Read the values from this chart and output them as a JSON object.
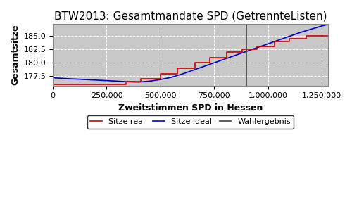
{
  "title": "BTW2013: Gesamtmandate SPD (GetrennteListen)",
  "xlabel": "Zweitstimmen SPD in Hessen",
  "ylabel": "Gesamtsitze",
  "plot_bg_color": "#c8c8c8",
  "fig_bg_color": "#ffffff",
  "wahlergebnis_x": 900000,
  "xlim": [
    0,
    1280000
  ],
  "ylim": [
    175.8,
    187.2
  ],
  "yticks": [
    177.5,
    180.0,
    182.5,
    185.0
  ],
  "xticks": [
    0,
    250000,
    500000,
    750000,
    1000000,
    1250000
  ],
  "ideal_x": [
    0,
    10000,
    50000,
    100000,
    150000,
    200000,
    250000,
    300000,
    320000,
    340000,
    360000,
    380000,
    400000,
    450000,
    500000,
    550000,
    600000,
    650000,
    700000,
    750000,
    800000,
    850000,
    900000,
    950000,
    1000000,
    1050000,
    1100000,
    1150000,
    1200000,
    1250000,
    1280000
  ],
  "ideal_y": [
    177.3,
    177.2,
    177.1,
    177.0,
    176.9,
    176.8,
    176.7,
    176.6,
    176.55,
    176.5,
    176.48,
    176.45,
    176.43,
    176.6,
    176.9,
    177.3,
    177.9,
    178.6,
    179.3,
    180.0,
    180.7,
    181.4,
    182.1,
    182.8,
    183.5,
    184.2,
    184.9,
    185.6,
    186.2,
    186.8,
    187.1
  ],
  "real_x": [
    0,
    320000,
    340000,
    360000,
    410000,
    420000,
    500000,
    510000,
    580000,
    590000,
    660000,
    670000,
    730000,
    740000,
    810000,
    820000,
    880000,
    890000,
    950000,
    960000,
    1030000,
    1040000,
    1100000,
    1110000,
    1180000,
    1280000
  ],
  "real_y": [
    176.0,
    176.0,
    176.5,
    176.5,
    177.0,
    177.0,
    178.0,
    178.0,
    179.0,
    179.0,
    180.0,
    180.0,
    181.0,
    181.0,
    182.0,
    182.0,
    182.5,
    182.5,
    183.0,
    183.0,
    184.0,
    184.0,
    184.5,
    184.5,
    185.0,
    185.0
  ],
  "legend_labels": [
    "Sitze real",
    "Sitze ideal",
    "Wahlergebnis"
  ],
  "line_colors": {
    "real": "#cc0000",
    "ideal": "#0000cc",
    "wahlergebnis": "#404040"
  },
  "title_fontsize": 11,
  "label_fontsize": 9,
  "tick_fontsize": 8
}
